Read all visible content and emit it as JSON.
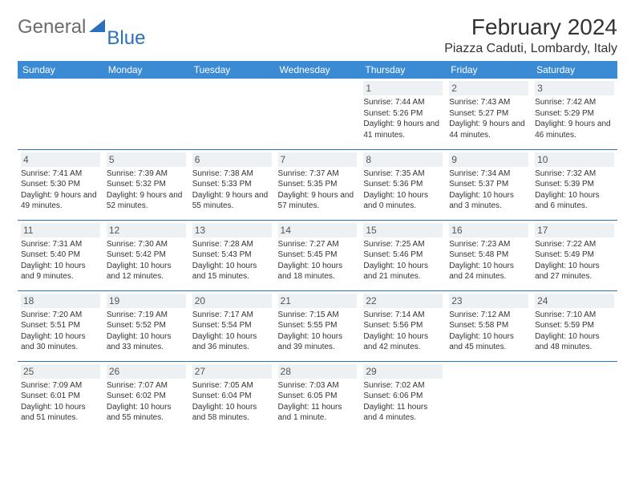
{
  "logo": {
    "text1": "General",
    "text2": "Blue"
  },
  "title": "February 2024",
  "location": "Piazza Caduti, Lombardy, Italy",
  "colors": {
    "header_bg": "#3b8bd4",
    "header_text": "#ffffff",
    "border": "#2b6fbd",
    "daynum_bg": "#eef1f4",
    "text": "#333333",
    "logo_gray": "#6b6b6b",
    "logo_blue": "#2b6fbd"
  },
  "fonts": {
    "title_size_pt": 21,
    "location_size_pt": 12,
    "header_size_pt": 9,
    "cell_size_pt": 7.5
  },
  "layout": {
    "weeks": 5,
    "blank_leading": 4,
    "blank_trailing": 2
  },
  "day_names": [
    "Sunday",
    "Monday",
    "Tuesday",
    "Wednesday",
    "Thursday",
    "Friday",
    "Saturday"
  ],
  "days": [
    {
      "n": 1,
      "sunrise": "7:44 AM",
      "sunset": "5:26 PM",
      "dl": "9 hours and 41 minutes."
    },
    {
      "n": 2,
      "sunrise": "7:43 AM",
      "sunset": "5:27 PM",
      "dl": "9 hours and 44 minutes."
    },
    {
      "n": 3,
      "sunrise": "7:42 AM",
      "sunset": "5:29 PM",
      "dl": "9 hours and 46 minutes."
    },
    {
      "n": 4,
      "sunrise": "7:41 AM",
      "sunset": "5:30 PM",
      "dl": "9 hours and 49 minutes."
    },
    {
      "n": 5,
      "sunrise": "7:39 AM",
      "sunset": "5:32 PM",
      "dl": "9 hours and 52 minutes."
    },
    {
      "n": 6,
      "sunrise": "7:38 AM",
      "sunset": "5:33 PM",
      "dl": "9 hours and 55 minutes."
    },
    {
      "n": 7,
      "sunrise": "7:37 AM",
      "sunset": "5:35 PM",
      "dl": "9 hours and 57 minutes."
    },
    {
      "n": 8,
      "sunrise": "7:35 AM",
      "sunset": "5:36 PM",
      "dl": "10 hours and 0 minutes."
    },
    {
      "n": 9,
      "sunrise": "7:34 AM",
      "sunset": "5:37 PM",
      "dl": "10 hours and 3 minutes."
    },
    {
      "n": 10,
      "sunrise": "7:32 AM",
      "sunset": "5:39 PM",
      "dl": "10 hours and 6 minutes."
    },
    {
      "n": 11,
      "sunrise": "7:31 AM",
      "sunset": "5:40 PM",
      "dl": "10 hours and 9 minutes."
    },
    {
      "n": 12,
      "sunrise": "7:30 AM",
      "sunset": "5:42 PM",
      "dl": "10 hours and 12 minutes."
    },
    {
      "n": 13,
      "sunrise": "7:28 AM",
      "sunset": "5:43 PM",
      "dl": "10 hours and 15 minutes."
    },
    {
      "n": 14,
      "sunrise": "7:27 AM",
      "sunset": "5:45 PM",
      "dl": "10 hours and 18 minutes."
    },
    {
      "n": 15,
      "sunrise": "7:25 AM",
      "sunset": "5:46 PM",
      "dl": "10 hours and 21 minutes."
    },
    {
      "n": 16,
      "sunrise": "7:23 AM",
      "sunset": "5:48 PM",
      "dl": "10 hours and 24 minutes."
    },
    {
      "n": 17,
      "sunrise": "7:22 AM",
      "sunset": "5:49 PM",
      "dl": "10 hours and 27 minutes."
    },
    {
      "n": 18,
      "sunrise": "7:20 AM",
      "sunset": "5:51 PM",
      "dl": "10 hours and 30 minutes."
    },
    {
      "n": 19,
      "sunrise": "7:19 AM",
      "sunset": "5:52 PM",
      "dl": "10 hours and 33 minutes."
    },
    {
      "n": 20,
      "sunrise": "7:17 AM",
      "sunset": "5:54 PM",
      "dl": "10 hours and 36 minutes."
    },
    {
      "n": 21,
      "sunrise": "7:15 AM",
      "sunset": "5:55 PM",
      "dl": "10 hours and 39 minutes."
    },
    {
      "n": 22,
      "sunrise": "7:14 AM",
      "sunset": "5:56 PM",
      "dl": "10 hours and 42 minutes."
    },
    {
      "n": 23,
      "sunrise": "7:12 AM",
      "sunset": "5:58 PM",
      "dl": "10 hours and 45 minutes."
    },
    {
      "n": 24,
      "sunrise": "7:10 AM",
      "sunset": "5:59 PM",
      "dl": "10 hours and 48 minutes."
    },
    {
      "n": 25,
      "sunrise": "7:09 AM",
      "sunset": "6:01 PM",
      "dl": "10 hours and 51 minutes."
    },
    {
      "n": 26,
      "sunrise": "7:07 AM",
      "sunset": "6:02 PM",
      "dl": "10 hours and 55 minutes."
    },
    {
      "n": 27,
      "sunrise": "7:05 AM",
      "sunset": "6:04 PM",
      "dl": "10 hours and 58 minutes."
    },
    {
      "n": 28,
      "sunrise": "7:03 AM",
      "sunset": "6:05 PM",
      "dl": "11 hours and 1 minute."
    },
    {
      "n": 29,
      "sunrise": "7:02 AM",
      "sunset": "6:06 PM",
      "dl": "11 hours and 4 minutes."
    }
  ],
  "labels": {
    "sunrise": "Sunrise:",
    "sunset": "Sunset:",
    "daylight": "Daylight:"
  }
}
